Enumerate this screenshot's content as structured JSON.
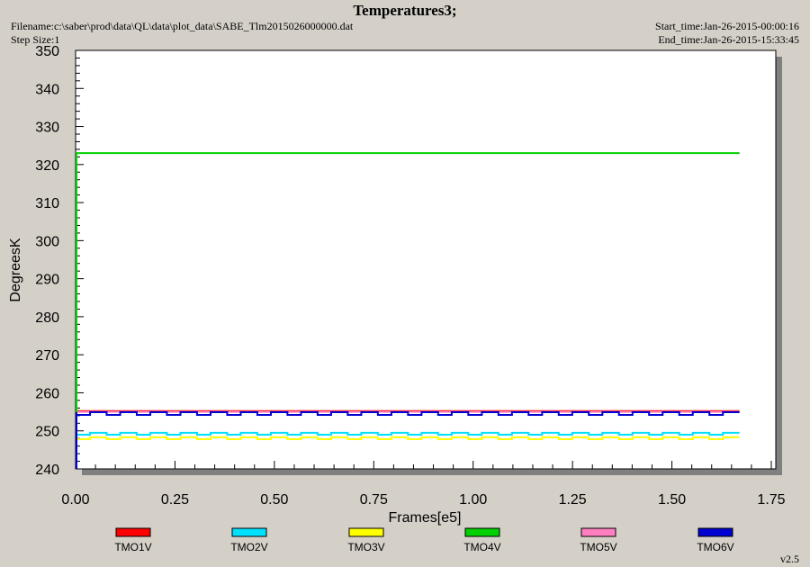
{
  "header": {
    "title": "Temperatures3;",
    "filename": "Filename:c:\\saber\\prod\\data\\QL\\data\\plot_data\\SABE_Tlm2015026000000.dat",
    "step_size": "Step Size:1",
    "start_time": "Start_time:Jan-26-2015-00:00:16",
    "end_time": "End_time:Jan-26-2015-15:33:45"
  },
  "version": "v2.5",
  "chart_data": {
    "type": "line",
    "title": "Temperatures3;",
    "xlabel": "Frames[e5]",
    "ylabel": "DegreesK",
    "xlim": [
      0,
      1.75
    ],
    "ylim": [
      240,
      350
    ],
    "x_ticks": [
      "0.00",
      "0.25",
      "0.50",
      "0.75",
      "1.00",
      "1.25",
      "1.50",
      "1.75"
    ],
    "y_ticks": [
      "240",
      "250",
      "260",
      "270",
      "280",
      "290",
      "300",
      "310",
      "320",
      "330",
      "340",
      "350"
    ],
    "grid": false,
    "legend_position": "bottom",
    "series": [
      {
        "name": "TMO1V",
        "color": "#ff0000",
        "x": [
          0,
          1.67
        ],
        "y": [
          255.2,
          255.2
        ]
      },
      {
        "name": "TMO2V",
        "color": "#00e0ff",
        "x": [
          0,
          1.67
        ],
        "y": [
          249.5,
          249.5
        ],
        "low": 249.0
      },
      {
        "name": "TMO3V",
        "color": "#ffff00",
        "x": [
          0,
          1.67
        ],
        "y": [
          248.3,
          248.3
        ],
        "low": 247.8
      },
      {
        "name": "TMO4V",
        "color": "#00d000",
        "x": [
          0,
          1.67
        ],
        "y": [
          323.0,
          323.0
        ]
      },
      {
        "name": "TMO5V",
        "color": "#ff80c0",
        "x": [
          0,
          1.67
        ],
        "y": [
          255.0,
          255.0
        ]
      },
      {
        "name": "TMO6V",
        "color": "#0000d0",
        "x": [
          0,
          1.67
        ],
        "y": [
          254.9,
          254.9
        ],
        "low": 254.2
      }
    ]
  }
}
